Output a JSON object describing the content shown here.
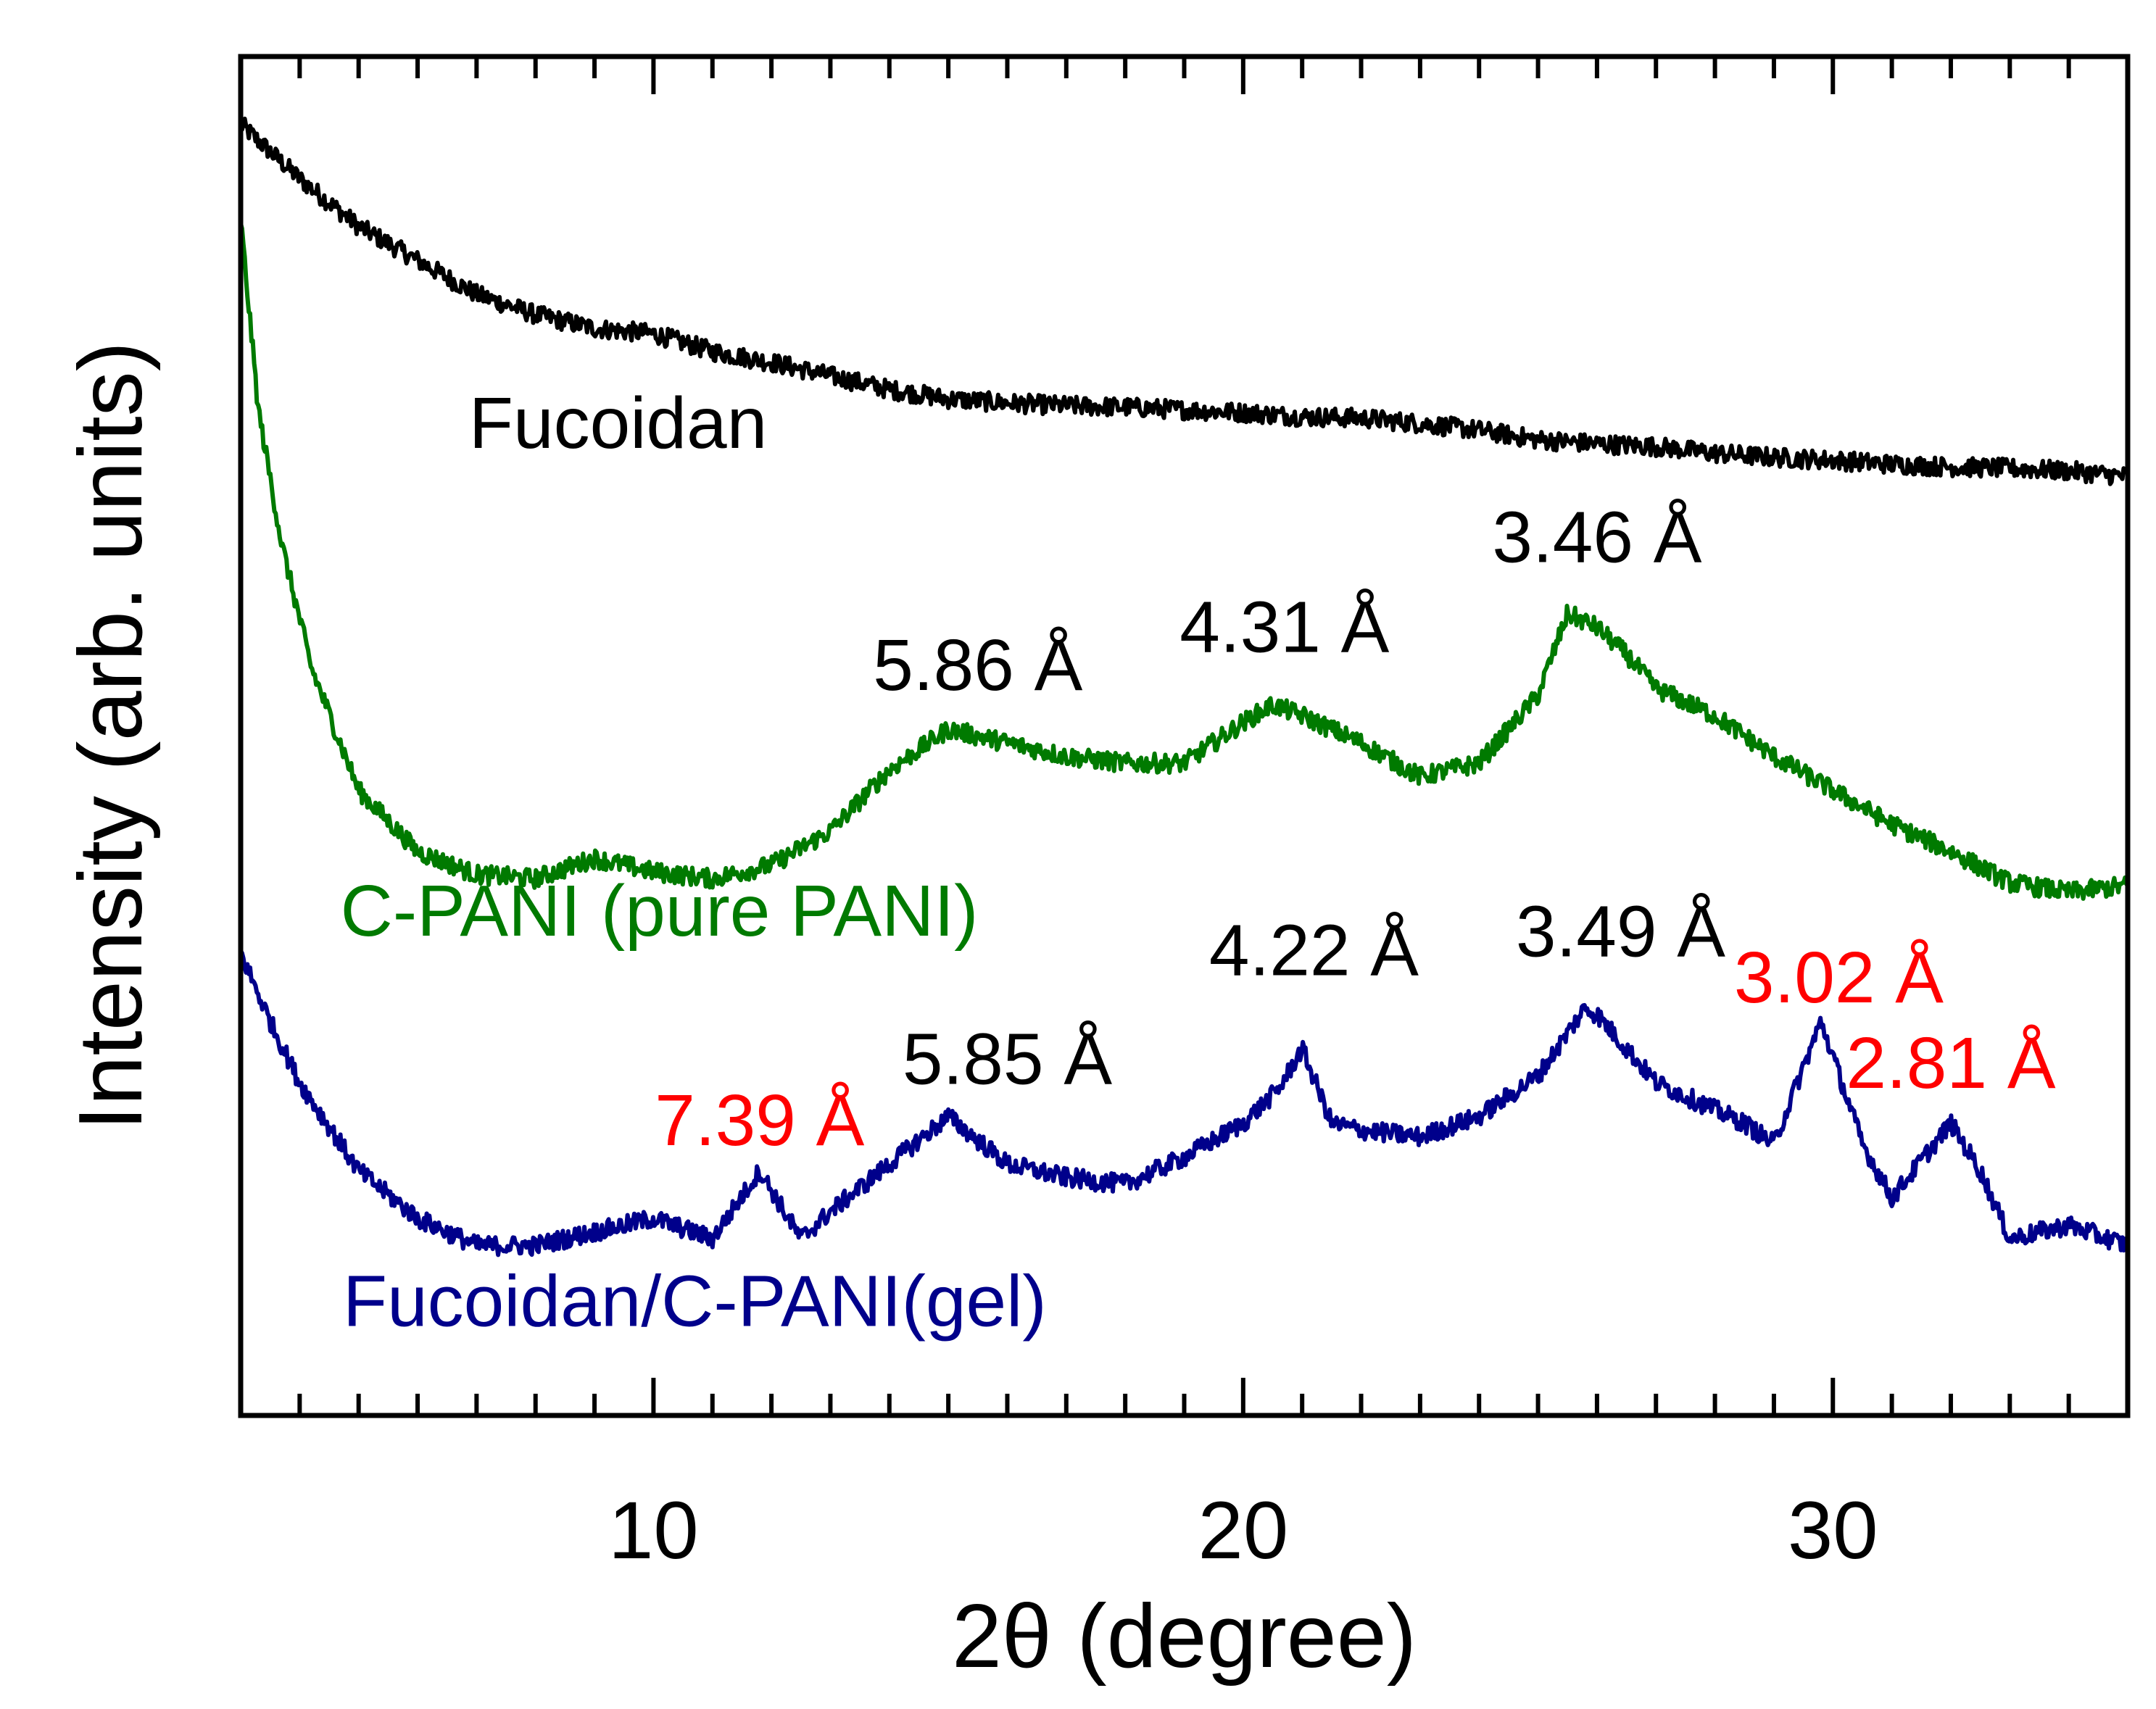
{
  "chart_data": {
    "type": "line",
    "xlabel": "2θ (degree)",
    "ylabel": "Intensity (arb. units)",
    "xlim": [
      3,
      35
    ],
    "ylim": [
      0,
      100
    ],
    "xticks": [
      10,
      20,
      30
    ],
    "xtick_labels": [
      "10",
      "20",
      "30"
    ],
    "minor_tick_step": 1,
    "grid": false,
    "series": [
      {
        "name": "Fucoidan",
        "color": "#000000",
        "points": [
          [
            3,
            95
          ],
          [
            4,
            91
          ],
          [
            5,
            87.5
          ],
          [
            6,
            85
          ],
          [
            7,
            82.5
          ],
          [
            8,
            81
          ],
          [
            9,
            80
          ],
          [
            10,
            79.6
          ],
          [
            11,
            78.3
          ],
          [
            12,
            77.5
          ],
          [
            13,
            76.5
          ],
          [
            14,
            75.5
          ],
          [
            15,
            74.8
          ],
          [
            16,
            74.5
          ],
          [
            17,
            74.3
          ],
          [
            18,
            74.2
          ],
          [
            19,
            74.0
          ],
          [
            20,
            73.8
          ],
          [
            21,
            73.5
          ],
          [
            22,
            73.4
          ],
          [
            23,
            73.0
          ],
          [
            24,
            72.5
          ],
          [
            25,
            71.8
          ],
          [
            26,
            71.5
          ],
          [
            27,
            71.3
          ],
          [
            28,
            70.8
          ],
          [
            29,
            70.5
          ],
          [
            30,
            70.3
          ],
          [
            31,
            70.0
          ],
          [
            32,
            69.8
          ],
          [
            33,
            69.7
          ],
          [
            34,
            69.5
          ],
          [
            35,
            69.1
          ]
        ]
      },
      {
        "name": "C-PANI (pure PANI)",
        "color": "#007a00",
        "points": [
          [
            3,
            88
          ],
          [
            3.3,
            74
          ],
          [
            3.7,
            64
          ],
          [
            4.2,
            55
          ],
          [
            5,
            46
          ],
          [
            6,
            41.5
          ],
          [
            7,
            39.8
          ],
          [
            8,
            39.5
          ],
          [
            9,
            41
          ],
          [
            10,
            40
          ],
          [
            11,
            39.5
          ],
          [
            12,
            40.5
          ],
          [
            13,
            43
          ],
          [
            14,
            47.5
          ],
          [
            15,
            50.5
          ],
          [
            16,
            49.5
          ],
          [
            17,
            48.5
          ],
          [
            18,
            48
          ],
          [
            19,
            48
          ],
          [
            20,
            51
          ],
          [
            20.5,
            52.3
          ],
          [
            21,
            51.5
          ],
          [
            22,
            49.5
          ],
          [
            23,
            47
          ],
          [
            24,
            48
          ],
          [
            25,
            53
          ],
          [
            25.5,
            59
          ],
          [
            26,
            58
          ],
          [
            26.5,
            56
          ],
          [
            27,
            53.5
          ],
          [
            28,
            51.5
          ],
          [
            29,
            48.5
          ],
          [
            30,
            46
          ],
          [
            31,
            43.5
          ],
          [
            32,
            41.5
          ],
          [
            33,
            39.2
          ],
          [
            34,
            38.5
          ],
          [
            35,
            39
          ]
        ]
      },
      {
        "name": "Fucoidan/C-PANI(gel)",
        "color": "#00008b",
        "points": [
          [
            3,
            34
          ],
          [
            3.5,
            29
          ],
          [
            4,
            24.5
          ],
          [
            5,
            18
          ],
          [
            6,
            14.5
          ],
          [
            7,
            12.5
          ],
          [
            8,
            12.5
          ],
          [
            9,
            13.5
          ],
          [
            10,
            14.5
          ],
          [
            11,
            13
          ],
          [
            11.8,
            18
          ],
          [
            12.5,
            13
          ],
          [
            13,
            15
          ],
          [
            14,
            18.5
          ],
          [
            15,
            22
          ],
          [
            16,
            18.5
          ],
          [
            17,
            17.5
          ],
          [
            18,
            17
          ],
          [
            19,
            19
          ],
          [
            20,
            21.5
          ],
          [
            20.6,
            24
          ],
          [
            21,
            27
          ],
          [
            21.5,
            21.5
          ],
          [
            22,
            21
          ],
          [
            23,
            20.5
          ],
          [
            24,
            22
          ],
          [
            25,
            25
          ],
          [
            25.8,
            30
          ],
          [
            26,
            29.5
          ],
          [
            27,
            24.5
          ],
          [
            28,
            22.5
          ],
          [
            28.5,
            21.5
          ],
          [
            29,
            20
          ],
          [
            29.8,
            29
          ],
          [
            30.5,
            20
          ],
          [
            31,
            16
          ],
          [
            32,
            21.5
          ],
          [
            32.5,
            18
          ],
          [
            33,
            13
          ],
          [
            34,
            14
          ],
          [
            35,
            12.5
          ]
        ]
      }
    ],
    "annotations": [
      {
        "text": "Fucoidan",
        "color": "#000000",
        "x": 9.4,
        "y": 71.2
      },
      {
        "text": "C-PANI (pure PANI)",
        "color": "#007a00",
        "x": 10.1,
        "y": 35.3
      },
      {
        "text": "Fucoidan/C-PANI(gel)",
        "color": "#00008b",
        "x": 10.7,
        "y": 6.6
      },
      {
        "text": "5.86 Å",
        "color": "#000000",
        "x": 15.5,
        "y": 53.4
      },
      {
        "text": "4.31 Å",
        "color": "#000000",
        "x": 20.7,
        "y": 56.2
      },
      {
        "text": "3.46 Å",
        "color": "#000000",
        "x": 26.0,
        "y": 62.8
      },
      {
        "text": "7.39 Å",
        "color": "#ff0000",
        "x": 11.8,
        "y": 19.9
      },
      {
        "text": "5.85 Å",
        "color": "#000000",
        "x": 16.0,
        "y": 24.4
      },
      {
        "text": "4.22 Å",
        "color": "#000000",
        "x": 21.2,
        "y": 32.4
      },
      {
        "text": "3.49 Å",
        "color": "#000000",
        "x": 26.4,
        "y": 33.8
      },
      {
        "text": "3.02 Å",
        "color": "#ff0000",
        "x": 30.1,
        "y": 30.4
      },
      {
        "text": "2.81 Å",
        "color": "#ff0000",
        "x": 32.0,
        "y": 24.1
      }
    ]
  }
}
